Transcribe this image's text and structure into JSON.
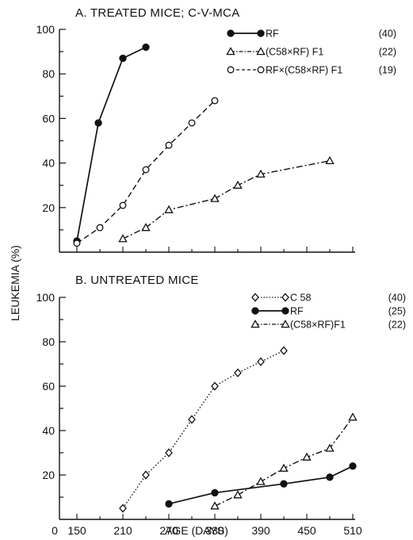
{
  "chart_data": [
    {
      "type": "line",
      "title": "A. TREATED MICE; C-V-MCA",
      "xlabel": "AGE (DAYS)",
      "ylabel": "LEUKEMIA (%)",
      "xlim": [
        150,
        510
      ],
      "ylim": [
        0,
        100
      ],
      "yticks": [
        "20",
        "40",
        "60",
        "80",
        "100"
      ],
      "legend_position": "top-right",
      "series": [
        {
          "name": "RF",
          "n": "(40)",
          "marker": "filled-circle",
          "line": "solid",
          "x": [
            150,
            178,
            210,
            240
          ],
          "y": [
            5,
            58,
            87,
            92
          ]
        },
        {
          "name": "(C58×RF) F1",
          "n": "(22)",
          "marker": "open-triangle",
          "line": "dash-dot",
          "x": [
            210,
            240,
            270,
            330,
            360,
            390,
            480
          ],
          "y": [
            6,
            11,
            19,
            24,
            30,
            35,
            41
          ]
        },
        {
          "name": "RF×(C58×RF) F1",
          "n": "(19)",
          "marker": "open-circle",
          "line": "dashed",
          "x": [
            150,
            180,
            210,
            240,
            270,
            300,
            330
          ],
          "y": [
            4,
            11,
            21,
            37,
            48,
            58,
            68
          ]
        }
      ]
    },
    {
      "type": "line",
      "title": "B. UNTREATED MICE",
      "xlabel": "AGE (DAYS)",
      "ylabel": "LEUKEMIA (%)",
      "xlim": [
        150,
        510
      ],
      "ylim": [
        0,
        100
      ],
      "yticks": [
        "20",
        "40",
        "60",
        "80",
        "100"
      ],
      "xticks": [
        "0",
        "150",
        "210",
        "270",
        "330",
        "390",
        "450",
        "510"
      ],
      "legend_position": "top-right",
      "series": [
        {
          "name": "C 58",
          "n": "(40)",
          "marker": "open-diamond",
          "line": "dotted",
          "x": [
            210,
            240,
            270,
            300,
            330,
            360,
            390,
            420
          ],
          "y": [
            5,
            20,
            30,
            45,
            60,
            66,
            71,
            76
          ]
        },
        {
          "name": "RF",
          "n": "(25)",
          "marker": "filled-circle",
          "line": "solid",
          "x": [
            270,
            330,
            420,
            480,
            510
          ],
          "y": [
            7,
            12,
            16,
            19,
            24
          ]
        },
        {
          "name": "(C58×RF)F1",
          "n": "(22)",
          "marker": "open-triangle",
          "line": "dash-dot",
          "x": [
            330,
            360,
            390,
            420,
            450,
            480,
            510
          ],
          "y": [
            6,
            11,
            17,
            23,
            28,
            32,
            46
          ]
        }
      ]
    }
  ]
}
